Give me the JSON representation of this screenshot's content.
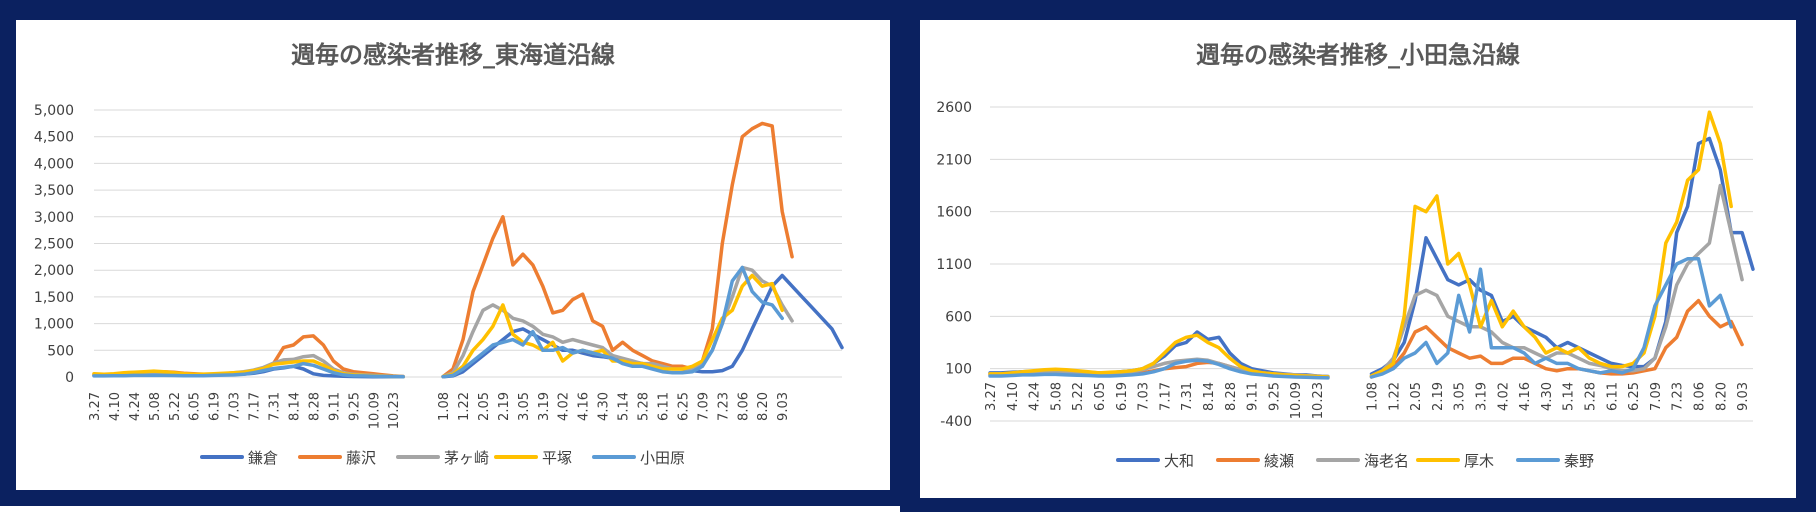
{
  "chart_data": [
    {
      "type": "line",
      "title": "週毎の感染者推移_東海道沿線",
      "yticks": [
        "5,000",
        "4,500",
        "4,000",
        "3,500",
        "3,000",
        "2,500",
        "2,000",
        "1,500",
        "1,000",
        "500",
        "0"
      ],
      "ylim": [
        0,
        5000
      ],
      "ytick_values": [
        5000,
        4500,
        4000,
        3500,
        3000,
        2500,
        2000,
        1500,
        1000,
        500,
        0
      ],
      "x_labels": [
        "3.27",
        "4.10",
        "4.24",
        "5.08",
        "5.22",
        "6.05",
        "6.19",
        "7.03",
        "7.17",
        "7.31",
        "8.14",
        "8.28",
        "9.11",
        "9.25",
        "10.09",
        "10.23",
        "",
        "1.08",
        "1.22",
        "2.05",
        "2.19",
        "3.05",
        "3.19",
        "4.02",
        "4.16",
        "4.30",
        "5.14",
        "5.28",
        "6.11",
        "6.25",
        "7.09",
        "7.23",
        "8.06",
        "8.20",
        "9.03"
      ],
      "gap_index": 16,
      "series": [
        {
          "name": "鎌倉",
          "color": "#4472C4",
          "seg1": [
            30,
            30,
            35,
            40,
            40,
            42,
            45,
            40,
            38,
            35,
            35,
            38,
            40,
            45,
            50,
            55,
            70,
            100,
            150,
            170,
            200,
            150,
            60,
            30,
            20,
            15,
            10,
            8,
            5,
            5,
            5,
            5
          ],
          "seg2": [
            5,
            20,
            100,
            250,
            400,
            550,
            700,
            850,
            900,
            800,
            700,
            600,
            500,
            500,
            450,
            400,
            380,
            350,
            300,
            280,
            250,
            200,
            180,
            180,
            150,
            120,
            100,
            100,
            120,
            200,
            500,
            900,
            1300,
            1700,
            1900,
            1700,
            1500,
            1300,
            1100,
            900,
            550
          ]
        },
        {
          "name": "藤沢",
          "color": "#ED7D31",
          "seg1": [
            50,
            40,
            45,
            60,
            70,
            80,
            90,
            100,
            90,
            70,
            60,
            50,
            50,
            50,
            60,
            70,
            100,
            150,
            250,
            550,
            600,
            750,
            770,
            600,
            300,
            150,
            100,
            80,
            60,
            40,
            20,
            10
          ],
          "seg2": [
            10,
            150,
            700,
            1600,
            2100,
            2600,
            3000,
            2100,
            2300,
            2100,
            1700,
            1200,
            1250,
            1450,
            1550,
            1050,
            950,
            500,
            650,
            500,
            400,
            300,
            250,
            200,
            200,
            150,
            300,
            900,
            2500,
            3600,
            4500,
            4650,
            4750,
            4700,
            3100,
            2250
          ]
        },
        {
          "name": "茅ヶ崎",
          "color": "#A5A5A5",
          "seg1": [
            30,
            30,
            35,
            40,
            45,
            50,
            55,
            50,
            45,
            40,
            40,
            45,
            50,
            60,
            80,
            100,
            130,
            180,
            260,
            320,
            330,
            380,
            400,
            300,
            150,
            80,
            50,
            40,
            30,
            20,
            15,
            10
          ],
          "seg2": [
            10,
            80,
            400,
            850,
            1250,
            1350,
            1250,
            1100,
            1050,
            950,
            800,
            750,
            650,
            700,
            650,
            600,
            550,
            400,
            350,
            300,
            250,
            250,
            200,
            150,
            150,
            150,
            250,
            500,
            1000,
            1500,
            2050,
            2000,
            1800,
            1700,
            1350,
            1050
          ]
        },
        {
          "name": "平塚",
          "color": "#FFC000",
          "seg1": [
            60,
            50,
            60,
            80,
            90,
            100,
            110,
            100,
            80,
            60,
            50,
            55,
            60,
            70,
            80,
            90,
            120,
            160,
            240,
            260,
            280,
            300,
            300,
            220,
            120,
            60,
            40,
            30,
            20,
            15,
            10,
            5
          ],
          "seg2": [
            10,
            50,
            200,
            500,
            700,
            950,
            1350,
            800,
            650,
            600,
            500,
            650,
            300,
            450,
            500,
            450,
            500,
            300,
            300,
            250,
            250,
            200,
            150,
            150,
            150,
            200,
            300,
            700,
            1100,
            1250,
            1700,
            1900,
            1700,
            1750,
            1250
          ]
        },
        {
          "name": "小田原",
          "color": "#5B9BD5",
          "seg1": [
            20,
            20,
            25,
            25,
            30,
            30,
            30,
            30,
            28,
            25,
            25,
            25,
            30,
            35,
            40,
            50,
            80,
            120,
            160,
            180,
            200,
            250,
            220,
            150,
            80,
            40,
            25,
            20,
            15,
            10,
            8,
            5
          ],
          "seg2": [
            5,
            30,
            150,
            300,
            450,
            600,
            650,
            700,
            600,
            850,
            500,
            500,
            550,
            450,
            500,
            450,
            400,
            350,
            250,
            200,
            200,
            150,
            100,
            80,
            80,
            100,
            200,
            500,
            1000,
            1800,
            2050,
            1600,
            1400,
            1350,
            1100
          ]
        }
      ]
    },
    {
      "type": "line",
      "title": "週毎の感染者推移_小田急沿線",
      "yticks": [
        "2600",
        "2100",
        "1600",
        "1100",
        "600",
        "100",
        "-400"
      ],
      "ylim": [
        -400,
        2600
      ],
      "ytick_values": [
        2600,
        2100,
        1600,
        1100,
        600,
        100,
        -400
      ],
      "x_labels": [
        "3.27",
        "4.10",
        "4.24",
        "5.08",
        "5.22",
        "6.05",
        "6.19",
        "7.03",
        "7.17",
        "7.31",
        "8.14",
        "8.28",
        "9.11",
        "9.25",
        "10.09",
        "10.23",
        "",
        "1.08",
        "1.22",
        "2.05",
        "2.19",
        "3.05",
        "3.19",
        "4.02",
        "4.16",
        "4.30",
        "5.14",
        "5.28",
        "6.11",
        "6.25",
        "7.09",
        "7.23",
        "8.06",
        "8.20",
        "9.03"
      ],
      "gap_index": 16,
      "series": [
        {
          "name": "大和",
          "color": "#4472C4",
          "seg1": [
            60,
            60,
            65,
            70,
            75,
            80,
            85,
            80,
            70,
            65,
            60,
            60,
            70,
            80,
            100,
            150,
            220,
            320,
            350,
            450,
            380,
            400,
            250,
            150,
            100,
            80,
            60,
            50,
            40,
            40,
            30,
            25
          ],
          "seg2": [
            50,
            100,
            180,
            350,
            750,
            1350,
            1150,
            950,
            900,
            950,
            850,
            800,
            550,
            600,
            500,
            450,
            400,
            300,
            350,
            300,
            250,
            200,
            150,
            130,
            120,
            120,
            200,
            550,
            1400,
            1650,
            2250,
            2300,
            2000,
            1400,
            1400,
            1050
          ]
        },
        {
          "name": "綾瀬",
          "color": "#ED7D31",
          "seg1": [
            40,
            40,
            45,
            50,
            55,
            60,
            60,
            55,
            50,
            45,
            40,
            40,
            45,
            50,
            60,
            80,
            100,
            110,
            120,
            150,
            160,
            150,
            120,
            90,
            70,
            60,
            50,
            40,
            30,
            25,
            20,
            15
          ],
          "seg2": [
            20,
            60,
            120,
            250,
            450,
            500,
            400,
            300,
            250,
            200,
            220,
            150,
            150,
            200,
            200,
            150,
            100,
            80,
            100,
            100,
            80,
            60,
            50,
            50,
            60,
            80,
            100,
            300,
            400,
            650,
            750,
            600,
            500,
            550,
            330
          ]
        },
        {
          "name": "海老名",
          "color": "#A5A5A5",
          "seg1": [
            50,
            50,
            55,
            60,
            65,
            70,
            75,
            70,
            60,
            55,
            50,
            50,
            60,
            70,
            90,
            120,
            150,
            170,
            180,
            190,
            180,
            150,
            120,
            90,
            70,
            60,
            50,
            45,
            40,
            35,
            30,
            25
          ],
          "seg2": [
            30,
            80,
            200,
            500,
            800,
            850,
            800,
            600,
            550,
            500,
            500,
            450,
            350,
            300,
            300,
            250,
            200,
            250,
            250,
            200,
            150,
            130,
            100,
            80,
            80,
            100,
            200,
            500,
            900,
            1100,
            1200,
            1300,
            1850,
            1400,
            950
          ]
        },
        {
          "name": "厚木",
          "color": "#FFC000",
          "seg1": [
            50,
            50,
            60,
            70,
            80,
            90,
            95,
            90,
            80,
            70,
            60,
            65,
            70,
            80,
            100,
            150,
            250,
            350,
            400,
            420,
            350,
            300,
            200,
            120,
            80,
            60,
            50,
            40,
            35,
            30,
            25,
            20
          ],
          "seg2": [
            30,
            80,
            150,
            600,
            1650,
            1600,
            1750,
            1100,
            1200,
            900,
            500,
            750,
            500,
            650,
            500,
            400,
            250,
            300,
            250,
            300,
            200,
            150,
            120,
            120,
            150,
            250,
            600,
            1300,
            1500,
            1900,
            2000,
            2550,
            2250,
            1650
          ]
        },
        {
          "name": "秦野",
          "color": "#5B9BD5",
          "seg1": [
            30,
            30,
            35,
            40,
            40,
            45,
            45,
            40,
            38,
            35,
            30,
            30,
            35,
            40,
            50,
            70,
            100,
            150,
            170,
            180,
            170,
            140,
            100,
            70,
            50,
            40,
            30,
            25,
            20,
            18,
            15,
            12
          ],
          "seg2": [
            20,
            50,
            100,
            200,
            250,
            350,
            150,
            250,
            800,
            450,
            1050,
            300,
            300,
            300,
            250,
            150,
            200,
            150,
            150,
            100,
            80,
            60,
            80,
            60,
            100,
            300,
            700,
            900,
            1100,
            1150,
            1150,
            700,
            800,
            500
          ]
        }
      ]
    }
  ]
}
